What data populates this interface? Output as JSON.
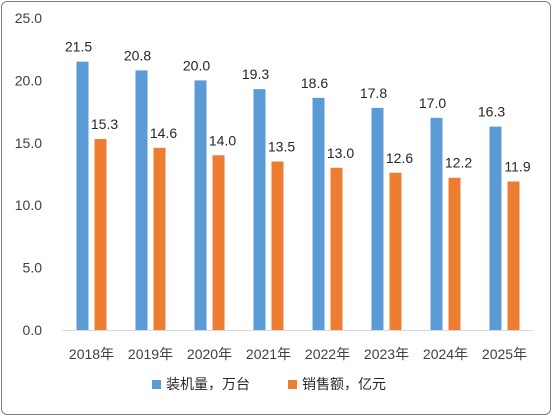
{
  "chart_data": {
    "type": "bar",
    "title": "",
    "xlabel": "",
    "ylabel": "",
    "categories": [
      "2018年",
      "2019年",
      "2020年",
      "2021年",
      "2022年",
      "2023年",
      "2024年",
      "2025年"
    ],
    "series": [
      {
        "name": "装机量，万台",
        "color": "#5b9bd5",
        "values": [
          21.5,
          20.8,
          20.0,
          19.3,
          18.6,
          17.8,
          17.0,
          16.3
        ]
      },
      {
        "name": "销售额，亿元",
        "color": "#ed7d31",
        "values": [
          15.3,
          14.6,
          14.0,
          13.5,
          13.0,
          12.6,
          12.2,
          11.9
        ]
      }
    ],
    "ylim": [
      0,
      25
    ],
    "yticks": [
      "0.0",
      "5.0",
      "10.0",
      "15.0",
      "20.0",
      "25.0"
    ],
    "grid": false,
    "legend_position": "bottom"
  }
}
